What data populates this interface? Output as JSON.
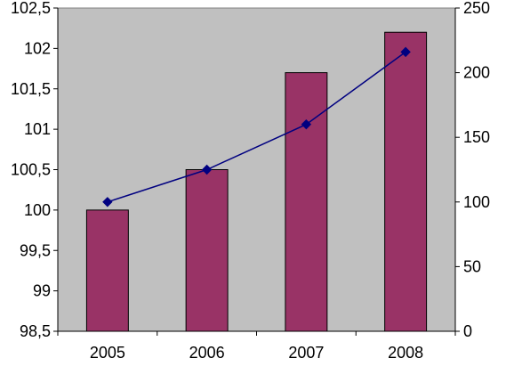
{
  "chart_data": {
    "type": "bar",
    "categories": [
      "2005",
      "2006",
      "2007",
      "2008"
    ],
    "series": [
      {
        "type": "bar",
        "axis": "left",
        "values": [
          100.0,
          100.5,
          101.7,
          102.2
        ],
        "color": "#993366"
      },
      {
        "type": "line",
        "axis": "right",
        "values": [
          100,
          125,
          160,
          216
        ],
        "color": "#000080",
        "marker": "diamond"
      }
    ],
    "left_axis": {
      "ylim": [
        98.5,
        102.5
      ],
      "ticks": [
        98.5,
        99,
        99.5,
        100,
        100.5,
        101,
        101.5,
        102,
        102.5
      ],
      "tick_labels": [
        "98,5",
        "99",
        "99,5",
        "100",
        "100,5",
        "101",
        "101,5",
        "102",
        "102,5"
      ]
    },
    "right_axis": {
      "ylim": [
        0,
        250
      ],
      "ticks": [
        0,
        50,
        100,
        150,
        200,
        250
      ],
      "tick_labels": [
        "0",
        "50",
        "100",
        "150",
        "200",
        "250"
      ]
    },
    "grid": false,
    "legend": "none",
    "background": "#c0c0c0"
  }
}
